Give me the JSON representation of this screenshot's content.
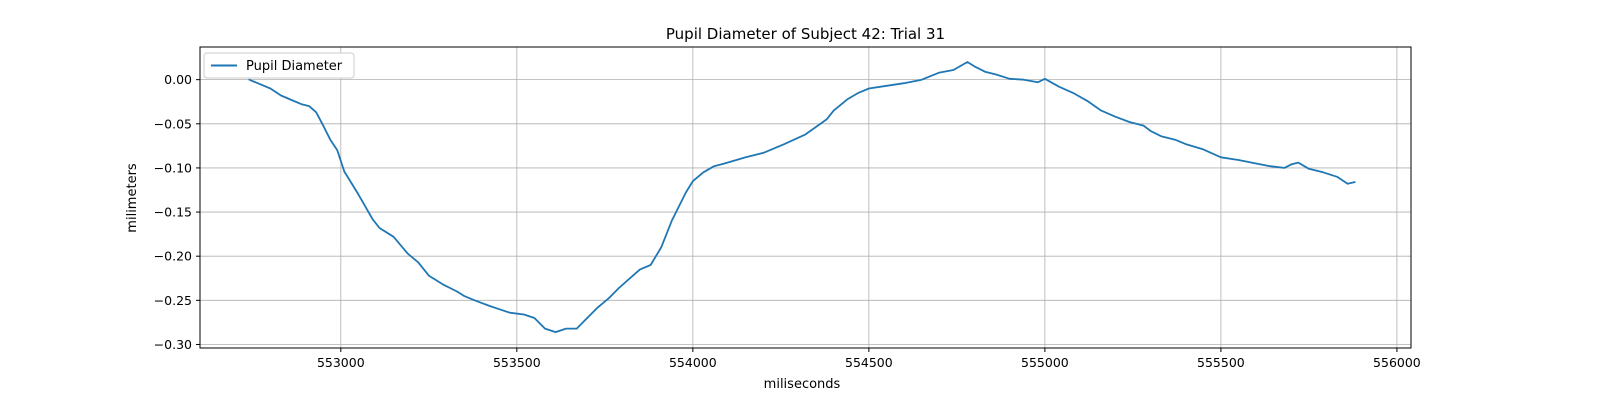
{
  "chart_data": {
    "type": "line",
    "title": "Pupil Diameter of Subject 42: Trial 31",
    "xlabel": "miliseconds",
    "ylabel": "milimeters",
    "xlim": [
      552600,
      556040
    ],
    "ylim": [
      -0.304,
      0.037
    ],
    "x_ticks": [
      553000,
      553500,
      554000,
      554500,
      555000,
      555500,
      556000
    ],
    "y_ticks": [
      0.0,
      -0.05,
      -0.1,
      -0.15,
      -0.2,
      -0.25,
      -0.3
    ],
    "x_tick_labels": [
      "553000",
      "553500",
      "554000",
      "554500",
      "555000",
      "555500",
      "556000"
    ],
    "y_tick_labels": [
      "0.00",
      "−0.05",
      "−0.10",
      "−0.15",
      "−0.20",
      "−0.25",
      "−0.30"
    ],
    "grid": true,
    "legend_position": "top-left",
    "series": [
      {
        "name": "Pupil Diameter",
        "color": "#1f77b4",
        "x": [
          552740,
          552770,
          552800,
          552830,
          552860,
          552890,
          552910,
          552930,
          552950,
          552970,
          552990,
          553010,
          553050,
          553090,
          553110,
          553150,
          553190,
          553220,
          553250,
          553290,
          553330,
          553350,
          553380,
          553420,
          553450,
          553480,
          553520,
          553550,
          553580,
          553610,
          553640,
          553670,
          553700,
          553730,
          553760,
          553790,
          553830,
          553850,
          553880,
          553910,
          553940,
          553980,
          554000,
          554030,
          554060,
          554090,
          554150,
          554200,
          554260,
          554320,
          554380,
          554400,
          554440,
          554470,
          554500,
          554550,
          554600,
          554650,
          554700,
          554740,
          554780,
          554800,
          554830,
          554860,
          554900,
          554940,
          554980,
          555000,
          555040,
          555080,
          555120,
          555160,
          555200,
          555240,
          555280,
          555300,
          555330,
          555370,
          555400,
          555450,
          555500,
          555550,
          555600,
          555640,
          555680,
          555700,
          555720,
          555750,
          555790,
          555830,
          555860,
          555880
        ],
        "y": [
          0.0,
          -0.005,
          -0.01,
          -0.018,
          -0.023,
          -0.028,
          -0.03,
          -0.037,
          -0.052,
          -0.068,
          -0.08,
          -0.104,
          -0.13,
          -0.158,
          -0.168,
          -0.178,
          -0.197,
          -0.207,
          -0.222,
          -0.232,
          -0.24,
          -0.245,
          -0.25,
          -0.256,
          -0.26,
          -0.264,
          -0.266,
          -0.27,
          -0.282,
          -0.286,
          -0.282,
          -0.282,
          -0.27,
          -0.258,
          -0.248,
          -0.236,
          -0.222,
          -0.215,
          -0.21,
          -0.19,
          -0.16,
          -0.128,
          -0.115,
          -0.105,
          -0.098,
          -0.095,
          -0.088,
          -0.083,
          -0.073,
          -0.062,
          -0.045,
          -0.035,
          -0.022,
          -0.015,
          -0.01,
          -0.007,
          -0.004,
          0.0,
          0.008,
          0.011,
          0.02,
          0.015,
          0.009,
          0.006,
          0.001,
          0.0,
          -0.003,
          0.001,
          -0.008,
          -0.015,
          -0.024,
          -0.035,
          -0.042,
          -0.048,
          -0.052,
          -0.058,
          -0.064,
          -0.068,
          -0.073,
          -0.079,
          -0.088,
          -0.091,
          -0.095,
          -0.098,
          -0.1,
          -0.096,
          -0.094,
          -0.101,
          -0.105,
          -0.11,
          -0.118,
          -0.116
        ]
      }
    ]
  }
}
